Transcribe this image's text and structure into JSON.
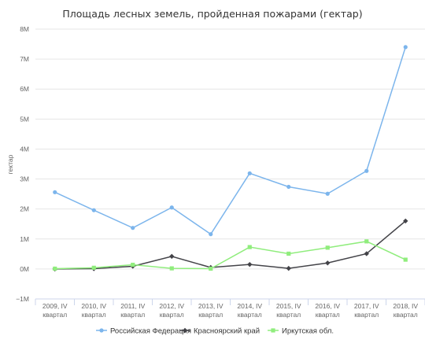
{
  "chart_data": {
    "type": "line",
    "title": "Площадь лесных земель, пройденная пожарами (гектар)",
    "xlabel": "",
    "ylabel": "гектар",
    "categories": [
      [
        "2009, IV",
        "квартал"
      ],
      [
        "2010, IV",
        "квартал"
      ],
      [
        "2011, IV",
        "квартал"
      ],
      [
        "2012, IV",
        "квартал"
      ],
      [
        "2013, IV",
        "квартал"
      ],
      [
        "2014, IV",
        "квартал"
      ],
      [
        "2015, IV",
        "квартал"
      ],
      [
        "2016, IV",
        "квартал"
      ],
      [
        "2017, IV",
        "квартал"
      ],
      [
        "2018, IV",
        "квартал"
      ]
    ],
    "ylim": [
      -1000000,
      8000000
    ],
    "yticks": [
      -1000000,
      0,
      1000000,
      2000000,
      3000000,
      4000000,
      5000000,
      6000000,
      7000000,
      8000000
    ],
    "ytick_labels": [
      "−1M",
      "0M",
      "1M",
      "2M",
      "3M",
      "4M",
      "5M",
      "6M",
      "7M",
      "8M"
    ],
    "grid": true,
    "legend_position": "bottom",
    "series": [
      {
        "name": "Российская Федерация",
        "color": "#7cb5ec",
        "marker": "circle",
        "values": [
          2560000,
          1960000,
          1370000,
          2050000,
          1160000,
          3190000,
          2740000,
          2510000,
          3270000,
          7400000
        ]
      },
      {
        "name": "Красноярский край",
        "color": "#434348",
        "marker": "diamond",
        "values": [
          0,
          10000,
          90000,
          420000,
          50000,
          150000,
          20000,
          200000,
          510000,
          1600000
        ]
      },
      {
        "name": "Иркутская обл.",
        "color": "#90ed7d",
        "marker": "square",
        "values": [
          10000,
          40000,
          140000,
          20000,
          10000,
          730000,
          510000,
          710000,
          920000,
          310000
        ]
      }
    ]
  }
}
